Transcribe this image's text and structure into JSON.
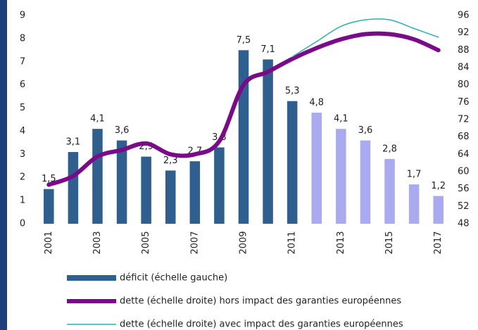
{
  "chart_data": {
    "type": "bar-line",
    "categories": [
      "2001",
      null,
      "2003",
      null,
      "2005",
      null,
      "2007",
      null,
      "2009",
      null,
      "2011",
      null,
      "2013",
      null,
      "2015",
      null,
      "2017"
    ],
    "ylim": [
      0,
      9
    ],
    "yticks": [
      0,
      1,
      2,
      3,
      4,
      5,
      6,
      7,
      8,
      9
    ],
    "y2lim": [
      48,
      96
    ],
    "y2ticks": [
      48,
      52,
      56,
      60,
      64,
      68,
      72,
      76,
      80,
      84,
      88,
      92,
      96
    ],
    "series": [
      {
        "name": "déficit (échelle gauche)",
        "type": "bar",
        "color": "#2e5f8e",
        "colors": [
          "#2e5f8e",
          "#2e5f8e",
          "#2e5f8e",
          "#2e5f8e",
          "#2e5f8e",
          "#2e5f8e",
          "#2e5f8e",
          "#2e5f8e",
          "#2e5f8e",
          "#2e5f8e",
          "#2e5f8e",
          "#aaaaf0",
          "#aaaaf0",
          "#aaaaf0",
          "#aaaaf0",
          "#aaaaf0",
          "#aaaaf0"
        ],
        "values": [
          1.5,
          3.1,
          4.1,
          3.6,
          2.9,
          2.3,
          2.7,
          3.3,
          7.5,
          7.1,
          5.3,
          4.8,
          4.1,
          3.6,
          2.8,
          1.7,
          1.2
        ],
        "value_labels": [
          "1,5",
          "3,1",
          "4,1",
          "3,6",
          "2,9",
          "2,3",
          "2,7",
          "3,3",
          "7,5",
          "7,1",
          "5,3",
          "4,8",
          "4,1",
          "3,6",
          "2,8",
          "1,7",
          "1,2"
        ]
      },
      {
        "name": "dette (échelle droite) hors impact des garanties européennes",
        "type": "line",
        "axis": "y2",
        "color": "#7b0a8a",
        "width": 6,
        "values": [
          57,
          59,
          63.5,
          65,
          66.5,
          64,
          64,
          67,
          80,
          83,
          86,
          88.5,
          90.5,
          91.7,
          91.7,
          90.5,
          88
        ]
      },
      {
        "name": "dette (échelle droite) avec impact des garanties européennes",
        "type": "line",
        "axis": "y2",
        "color": "#2ab0b0",
        "width": 1.5,
        "values": [
          null,
          null,
          null,
          null,
          null,
          null,
          null,
          null,
          null,
          null,
          86.5,
          90,
          93.5,
          95,
          95,
          93,
          91
        ]
      }
    ]
  }
}
